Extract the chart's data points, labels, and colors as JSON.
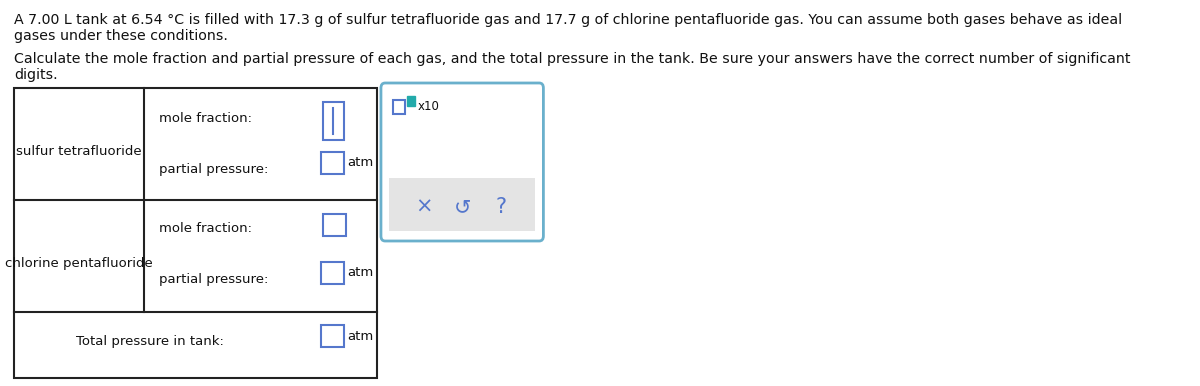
{
  "title_line1": "A 7.00 L tank at 6.54 °C is filled with 17.3 g of sulfur tetrafluoride gas and 17.7 g of chlorine pentafluoride gas. You can assume both gases behave as ideal",
  "title_line2": "gases under these conditions.",
  "subtitle_line1": "Calculate the mole fraction and partial pressure of each gas, and the total pressure in the tank. Be sure your answers have the correct number of significant",
  "subtitle_line2": "digits.",
  "gas1_name": "sulfur tetrafluoride",
  "gas2_name": "chlorine pentafluoride",
  "label_mole_fraction": "mole fraction:",
  "label_partial_pressure": "partial pressure:",
  "label_total": "Total pressure in tank:",
  "label_atm": "atm",
  "label_x10": "x10",
  "popup_symbols": [
    "×",
    "↺",
    "?"
  ],
  "bg_color": "#ffffff",
  "table_border_color": "#222222",
  "input_box_color": "#5577cc",
  "popup_border_color": "#6ab0cc",
  "popup_bg": "#ffffff",
  "popup_action_bg": "#e4e4e4",
  "text_color": "#111111",
  "popup_symbol_color": "#5577cc",
  "teal_color": "#22aaaa"
}
